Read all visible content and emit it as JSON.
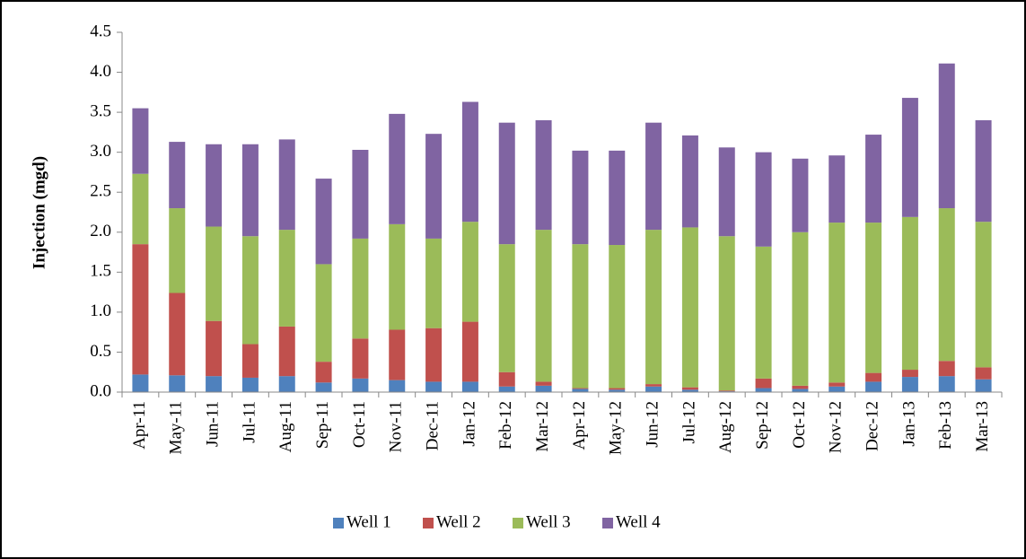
{
  "chart_data": {
    "type": "stacked_bar",
    "y_label": "Injection (mgd)",
    "categories": [
      "Apr-11",
      "May-11",
      "Jun-11",
      "Jul-11",
      "Aug-11",
      "Sep-11",
      "Oct-11",
      "Nov-11",
      "Dec-11",
      "Jan-12",
      "Feb-12",
      "Mar-12",
      "Apr-12",
      "May-12",
      "Jun-12",
      "Jul-12",
      "Aug-12",
      "Sep-12",
      "Oct-12",
      "Nov-12",
      "Dec-12",
      "Jan-13",
      "Feb-13",
      "Mar-13"
    ],
    "series": [
      {
        "name": "Well 1",
        "color": "#4f81bd",
        "values": [
          0.22,
          0.21,
          0.2,
          0.18,
          0.2,
          0.12,
          0.17,
          0.15,
          0.13,
          0.13,
          0.07,
          0.08,
          0.04,
          0.03,
          0.07,
          0.03,
          0.01,
          0.05,
          0.04,
          0.07,
          0.13,
          0.19,
          0.2,
          0.16
        ]
      },
      {
        "name": "Well 2",
        "color": "#c0504d",
        "values": [
          1.63,
          1.03,
          0.69,
          0.42,
          0.62,
          0.26,
          0.5,
          0.63,
          0.67,
          0.75,
          0.18,
          0.05,
          0.01,
          0.02,
          0.03,
          0.03,
          0.01,
          0.12,
          0.04,
          0.05,
          0.11,
          0.09,
          0.19,
          0.15
        ]
      },
      {
        "name": "Well 3",
        "color": "#9bbb59",
        "values": [
          0.88,
          1.06,
          1.18,
          1.35,
          1.21,
          1.22,
          1.25,
          1.32,
          1.12,
          1.25,
          1.6,
          1.9,
          1.8,
          1.79,
          1.93,
          2.0,
          1.93,
          1.65,
          1.92,
          2.0,
          1.88,
          1.91,
          1.91,
          1.82
        ]
      },
      {
        "name": "Well 4",
        "color": "#8064a2",
        "values": [
          0.82,
          0.83,
          1.03,
          1.15,
          1.13,
          1.07,
          1.11,
          1.38,
          1.31,
          1.5,
          1.52,
          1.37,
          1.17,
          1.18,
          1.34,
          1.15,
          1.11,
          1.18,
          0.92,
          0.84,
          1.1,
          1.49,
          1.81,
          1.27
        ]
      }
    ],
    "ylim": [
      0,
      4.5
    ],
    "yticks": [
      {
        "value": 0,
        "label": "0.0"
      },
      {
        "value": 0.5,
        "label": "0.5"
      },
      {
        "value": 1,
        "label": "1.0"
      },
      {
        "value": 1.5,
        "label": "1.5"
      },
      {
        "value": 2,
        "label": "2.0"
      },
      {
        "value": 2.5,
        "label": "2.5"
      },
      {
        "value": 3,
        "label": "3.0"
      },
      {
        "value": 3.5,
        "label": "3.5"
      },
      {
        "value": 4,
        "label": "4.0"
      },
      {
        "value": 4.5,
        "label": "4.5"
      }
    ],
    "legend": "bottom"
  }
}
